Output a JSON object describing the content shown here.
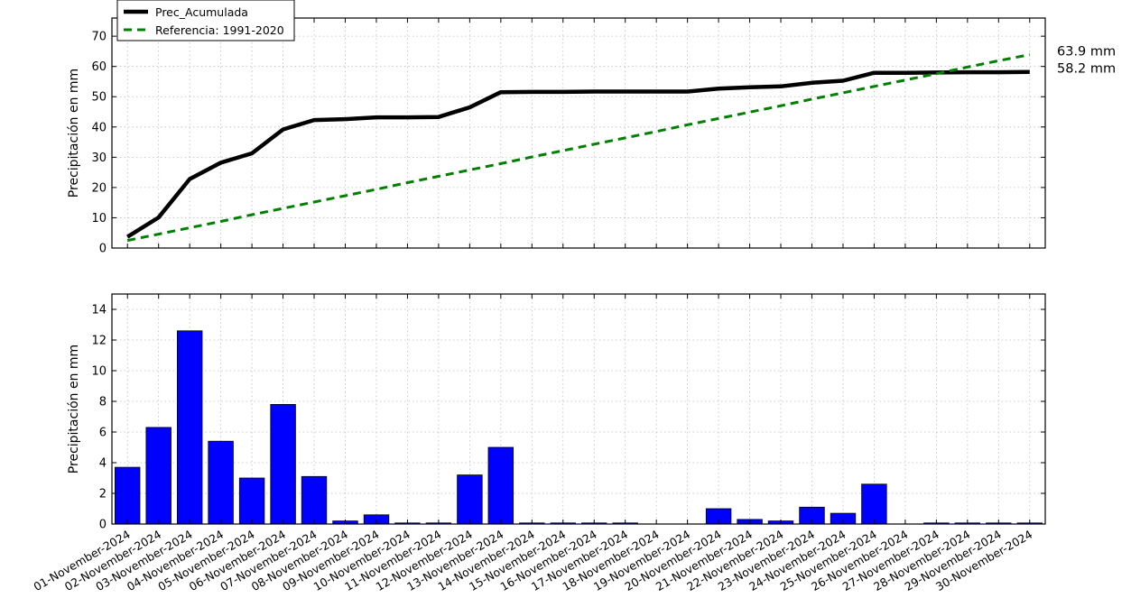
{
  "chart_data": [
    {
      "type": "line",
      "ylabel": "Precipitación en mm",
      "ylim": [
        0,
        76
      ],
      "yticks": [
        0,
        10,
        20,
        30,
        40,
        50,
        60,
        70
      ],
      "grid": true,
      "legend": {
        "placement": "top-left"
      },
      "x": [
        "01-November-2024",
        "02-November-2024",
        "03-November-2024",
        "04-November-2024",
        "05-November-2024",
        "06-November-2024",
        "07-November-2024",
        "08-November-2024",
        "09-November-2024",
        "10-November-2024",
        "11-November-2024",
        "12-November-2024",
        "13-November-2024",
        "14-November-2024",
        "15-November-2024",
        "16-November-2024",
        "17-November-2024",
        "18-November-2024",
        "19-November-2024",
        "20-November-2024",
        "21-November-2024",
        "22-November-2024",
        "23-November-2024",
        "24-November-2024",
        "25-November-2024",
        "26-November-2024",
        "27-November-2024",
        "28-November-2024",
        "29-November-2024",
        "30-November-2024"
      ],
      "series": [
        {
          "name": "Prec_Acumulada",
          "color": "#000000",
          "style": "solid",
          "values": [
            3.7,
            10.1,
            22.8,
            28.2,
            31.3,
            39.2,
            42.3,
            42.6,
            43.2,
            43.2,
            43.3,
            46.5,
            51.5,
            51.6,
            51.6,
            51.7,
            51.7,
            51.7,
            51.7,
            52.7,
            53.1,
            53.4,
            54.6,
            55.3,
            57.9,
            57.9,
            58.0,
            58.1,
            58.1,
            58.2
          ]
        },
        {
          "name": "Referencia: 1991-2020",
          "color": "#008000",
          "style": "dashed",
          "values": [
            2.5,
            4.6,
            6.7,
            8.8,
            11.0,
            13.1,
            15.2,
            17.3,
            19.4,
            21.6,
            23.7,
            25.8,
            27.9,
            30.1,
            32.2,
            34.3,
            36.4,
            38.5,
            40.7,
            42.8,
            44.9,
            47.0,
            49.2,
            51.3,
            53.4,
            55.5,
            57.6,
            59.8,
            61.9,
            63.9
          ]
        }
      ],
      "end_labels": [
        "63.9 mm",
        "58.2 mm"
      ]
    },
    {
      "type": "bar",
      "ylabel": "Precipitación en mm",
      "ylim": [
        0,
        15
      ],
      "yticks": [
        0,
        2,
        4,
        6,
        8,
        10,
        12,
        14
      ],
      "grid": true,
      "bar_color": "#0000ff",
      "categories": [
        "01-November-2024",
        "02-November-2024",
        "03-November-2024",
        "04-November-2024",
        "05-November-2024",
        "06-November-2024",
        "07-November-2024",
        "08-November-2024",
        "09-November-2024",
        "10-November-2024",
        "11-November-2024",
        "12-November-2024",
        "13-November-2024",
        "14-November-2024",
        "15-November-2024",
        "16-November-2024",
        "17-November-2024",
        "18-November-2024",
        "19-November-2024",
        "20-November-2024",
        "21-November-2024",
        "22-November-2024",
        "23-November-2024",
        "24-November-2024",
        "25-November-2024",
        "26-November-2024",
        "27-November-2024",
        "28-November-2024",
        "29-November-2024",
        "30-November-2024"
      ],
      "values": [
        3.7,
        6.3,
        12.6,
        5.4,
        3.0,
        7.8,
        3.1,
        0.2,
        0.6,
        0.05,
        0.05,
        3.2,
        5.0,
        0.05,
        0.05,
        0.05,
        0.05,
        0.0,
        0.0,
        1.0,
        0.3,
        0.2,
        1.1,
        0.7,
        2.6,
        0.0,
        0.05,
        0.05,
        0.05,
        0.05
      ]
    }
  ]
}
